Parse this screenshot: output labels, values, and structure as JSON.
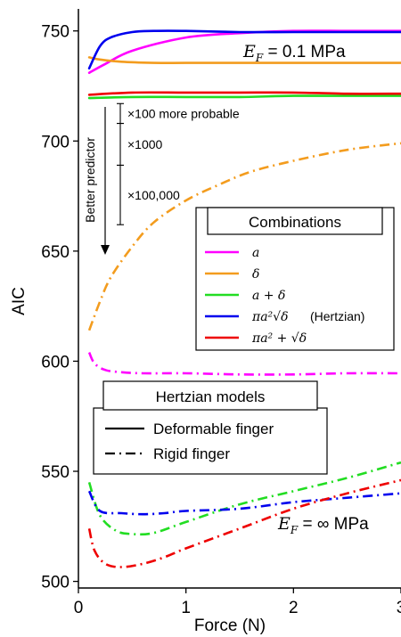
{
  "chart_data": {
    "type": "line",
    "xlabel": "Force (N)",
    "ylabel": "AIC",
    "xlim": [
      0,
      3
    ],
    "ylim": [
      497,
      760
    ],
    "x_ticks": [
      "0",
      "1",
      "2",
      "3"
    ],
    "x_tick_values": [
      0,
      1,
      2,
      3
    ],
    "y_ticks": [
      "500",
      "550",
      "600",
      "650",
      "700",
      "750"
    ],
    "y_tick_values": [
      500,
      550,
      600,
      650,
      700,
      750
    ],
    "grid": false,
    "colors": {
      "a": "#ff00ff",
      "delta": "#f39c1e",
      "a_plus_delta": "#22dd22",
      "hertzian": "#0000ee",
      "pi_a2_plus_sqrt_delta": "#ee0000"
    },
    "series": [
      {
        "key": "a",
        "style": "solid",
        "x": [
          0.1,
          0.25,
          0.5,
          1.0,
          1.5,
          2.0,
          2.5,
          3.0
        ],
        "y": [
          731,
          735,
          741,
          747,
          749,
          750,
          750,
          750
        ]
      },
      {
        "key": "delta",
        "style": "solid",
        "x": [
          0.1,
          0.2,
          0.4,
          0.7,
          1.0,
          1.5,
          2.0,
          2.5,
          3.0
        ],
        "y": [
          738,
          737,
          736,
          735.5,
          735.5,
          735.5,
          735.5,
          735.5,
          735.5
        ]
      },
      {
        "key": "a_plus_delta",
        "style": "solid",
        "x": [
          0.1,
          0.5,
          1.0,
          1.5,
          2.0,
          2.5,
          3.0
        ],
        "y": [
          719.5,
          720,
          720,
          720,
          720.5,
          720.5,
          720.5
        ]
      },
      {
        "key": "hertzian",
        "style": "solid",
        "x": [
          0.1,
          0.2,
          0.3,
          0.5,
          0.7,
          1.0,
          1.5,
          2.0,
          2.5,
          3.0
        ],
        "y": [
          733,
          743,
          747,
          749.5,
          750,
          750,
          749.5,
          749.5,
          749.5,
          749.5
        ]
      },
      {
        "key": "pi_a2_plus_sqrt_delta",
        "style": "solid",
        "x": [
          0.1,
          0.5,
          1.0,
          1.5,
          2.0,
          2.5,
          3.0
        ],
        "y": [
          721,
          722,
          722,
          722,
          722,
          721.5,
          721.5
        ]
      },
      {
        "key": "delta",
        "style": "dashdot",
        "x": [
          0.1,
          0.2,
          0.3,
          0.5,
          0.7,
          1.0,
          1.3,
          1.6,
          2.0,
          2.5,
          3.0
        ],
        "y": [
          614,
          627,
          638,
          652,
          663,
          673,
          680,
          686,
          691,
          696,
          699
        ]
      },
      {
        "key": "a",
        "style": "dashdot",
        "x": [
          0.1,
          0.15,
          0.25,
          0.4,
          0.6,
          1.0,
          1.5,
          2.0,
          2.5,
          3.0
        ],
        "y": [
          604,
          599,
          596,
          595,
          594.5,
          594.5,
          594,
          594,
          594.5,
          594.5
        ]
      },
      {
        "key": "a_plus_delta",
        "style": "dashdot",
        "x": [
          0.1,
          0.2,
          0.35,
          0.5,
          0.7,
          1.0,
          1.5,
          2.0,
          2.5,
          3.0
        ],
        "y": [
          545,
          530,
          523,
          521.5,
          522,
          527,
          535,
          541,
          547,
          554
        ]
      },
      {
        "key": "hertzian",
        "style": "dashdot",
        "x": [
          0.1,
          0.2,
          0.4,
          0.6,
          0.8,
          1.0,
          1.5,
          2.0,
          2.5,
          3.0
        ],
        "y": [
          541,
          532,
          531,
          530.5,
          531,
          532,
          533,
          536,
          538,
          540
        ]
      },
      {
        "key": "pi_a2_plus_sqrt_delta",
        "style": "dashdot",
        "x": [
          0.1,
          0.15,
          0.25,
          0.4,
          0.6,
          0.8,
          1.0,
          1.5,
          2.0,
          2.5,
          3.0
        ],
        "y": [
          524,
          514,
          508,
          506.5,
          508,
          511,
          515,
          524,
          533,
          540,
          546
        ]
      }
    ],
    "legend_combinations": {
      "title": "Combinations",
      "entries": [
        {
          "key": "a",
          "label": "a"
        },
        {
          "key": "delta",
          "label": "δ"
        },
        {
          "key": "a_plus_delta",
          "label": "a + δ"
        },
        {
          "key": "hertzian",
          "label": "πa²√δ",
          "suffix": "(Hertzian)"
        },
        {
          "key": "pi_a2_plus_sqrt_delta",
          "label": "πa² + √δ"
        }
      ]
    },
    "legend_models": {
      "title": "Hertzian models",
      "entries": [
        {
          "style": "solid",
          "label": "Deformable finger"
        },
        {
          "style": "dashdot",
          "label": "Rigid finger"
        }
      ]
    },
    "annotations": {
      "ef_top": "E_F = 0.1 MPa",
      "ef_top_parts": {
        "symbol": "E",
        "sub": "F",
        "rest": " = 0.1 MPa"
      },
      "ef_bottom_parts": {
        "symbol": "E",
        "sub": "F",
        "rest": " = ∞ MPa"
      },
      "better_predictor": "Better predictor",
      "brackets": [
        {
          "label": "×100 more probable",
          "y_top": 717,
          "y_bottom": 708
        },
        {
          "label": "×1000",
          "y_top": 708,
          "y_bottom": 689
        },
        {
          "label": "×100,000",
          "y_top": 689,
          "y_bottom": 662
        }
      ]
    }
  }
}
